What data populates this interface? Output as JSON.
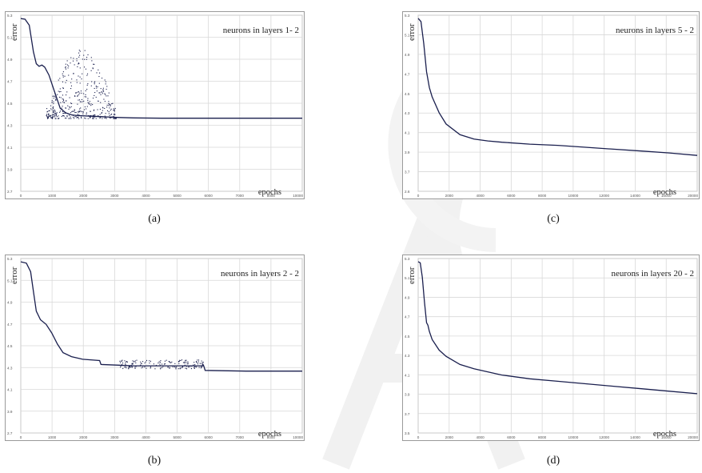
{
  "chart_data": [
    {
      "type": "line",
      "id": "a",
      "caption": "(a)",
      "title": "neurons in layers 1- 2",
      "ylabel": "error",
      "xlabel": "epochs",
      "xlim": [
        0,
        10000
      ],
      "ylim": [
        2.7,
        5.35
      ],
      "x_ticks": [
        "0",
        "1000",
        "2000",
        "3000",
        "4000",
        "5000",
        "6000",
        "7000",
        "8000",
        "10000"
      ],
      "y_ticks": [
        "5.3",
        "5.1",
        "4.9",
        "4.7",
        "4.5",
        "4.3",
        "4.1",
        "3.9",
        "2.7"
      ],
      "series": [
        {
          "x": [
            0,
            150,
            300,
            450,
            550,
            650,
            750,
            850,
            1000,
            1200,
            1400,
            1600,
            1800,
            2000,
            2500,
            3000,
            3500,
            4000,
            5000,
            6000,
            8000,
            10000
          ],
          "y": [
            5.3,
            5.29,
            5.2,
            4.8,
            4.62,
            4.58,
            4.6,
            4.57,
            4.45,
            4.2,
            3.95,
            3.88,
            3.85,
            3.84,
            3.83,
            3.82,
            3.81,
            3.805,
            3.8,
            3.8,
            3.8,
            3.8
          ]
        }
      ],
      "noise": {
        "x_range": [
          900,
          3400
        ],
        "y_range": [
          3.8,
          4.85
        ],
        "count": 420
      }
    },
    {
      "type": "line",
      "id": "b",
      "caption": "(b)",
      "title": "neurons in layers 2 - 2",
      "ylabel": "error",
      "xlabel": "epochs",
      "xlim": [
        0,
        10000
      ],
      "ylim": [
        2.7,
        5.35
      ],
      "x_ticks": [
        "0",
        "1000",
        "2000",
        "3000",
        "4000",
        "5000",
        "6000",
        "7000",
        "8000",
        "10000"
      ],
      "y_ticks": [
        "5.3",
        "5.1",
        "4.9",
        "4.7",
        "4.5",
        "4.3",
        "4.1",
        "3.9",
        "2.7"
      ],
      "series": [
        {
          "x": [
            0,
            200,
            350,
            450,
            550,
            700,
            900,
            1100,
            1300,
            1500,
            1800,
            2200,
            2800,
            2850,
            3500,
            4000,
            5000,
            6000,
            6500,
            6550,
            8000,
            10000
          ],
          "y": [
            5.3,
            5.28,
            5.15,
            4.85,
            4.55,
            4.42,
            4.35,
            4.22,
            4.05,
            3.92,
            3.86,
            3.82,
            3.8,
            3.74,
            3.73,
            3.72,
            3.72,
            3.72,
            3.72,
            3.65,
            3.64,
            3.64
          ]
        }
      ],
      "noise": {
        "x_range": [
          3500,
          6500
        ],
        "y_range": [
          3.68,
          3.82
        ],
        "count": 160
      }
    },
    {
      "type": "line",
      "id": "c",
      "caption": "(c)",
      "title": "neurons in layers 5 - 2",
      "ylabel": "error",
      "xlabel": "epochs",
      "xlim": [
        0,
        20000
      ],
      "ylim": [
        2.55,
        5.35
      ],
      "x_ticks": [
        "0",
        "2000",
        "4000",
        "6000",
        "8000",
        "10000",
        "12000",
        "14000",
        "16000",
        "20000"
      ],
      "y_ticks": [
        "5.3",
        "5.1",
        "4.9",
        "4.7",
        "4.5",
        "4.3",
        "4.1",
        "3.9",
        "3.7",
        "2.6"
      ],
      "series": [
        {
          "x": [
            0,
            200,
            400,
            600,
            800,
            1000,
            1500,
            2000,
            3000,
            4000,
            5000,
            6000,
            8000,
            10000,
            12000,
            14000,
            16000,
            18000,
            20000
          ],
          "y": [
            5.3,
            5.25,
            4.9,
            4.45,
            4.2,
            4.05,
            3.8,
            3.62,
            3.45,
            3.38,
            3.35,
            3.33,
            3.3,
            3.28,
            3.25,
            3.22,
            3.19,
            3.16,
            3.12
          ]
        }
      ]
    },
    {
      "type": "line",
      "id": "d",
      "caption": "(d)",
      "title": "neurons in layers 20 - 2",
      "ylabel": "error",
      "xlabel": "epochs",
      "xlim": [
        0,
        20000
      ],
      "ylim": [
        2.55,
        5.35
      ],
      "x_ticks": [
        "0",
        "2000",
        "4000",
        "6000",
        "8000",
        "10000",
        "12000",
        "14000",
        "16000",
        "20000"
      ],
      "y_ticks": [
        "5.3",
        "5.1",
        "4.9",
        "4.7",
        "4.5",
        "4.3",
        "4.1",
        "3.9",
        "3.7",
        "3.5"
      ],
      "series": [
        {
          "x": [
            0,
            150,
            300,
            450,
            600,
            700,
            800,
            1000,
            1500,
            2000,
            3000,
            4000,
            6000,
            8000,
            10000,
            12000,
            14000,
            16000,
            18000,
            20000
          ],
          "y": [
            5.3,
            5.28,
            5.05,
            4.65,
            4.32,
            4.28,
            4.18,
            4.05,
            3.88,
            3.78,
            3.65,
            3.58,
            3.48,
            3.42,
            3.38,
            3.34,
            3.3,
            3.26,
            3.22,
            3.18
          ]
        }
      ]
    }
  ],
  "colors": {
    "line": "#1a1f4e",
    "grid": "#d8d8d8",
    "frame": "#9a9a9a",
    "watermark": "#f0f0f0"
  }
}
